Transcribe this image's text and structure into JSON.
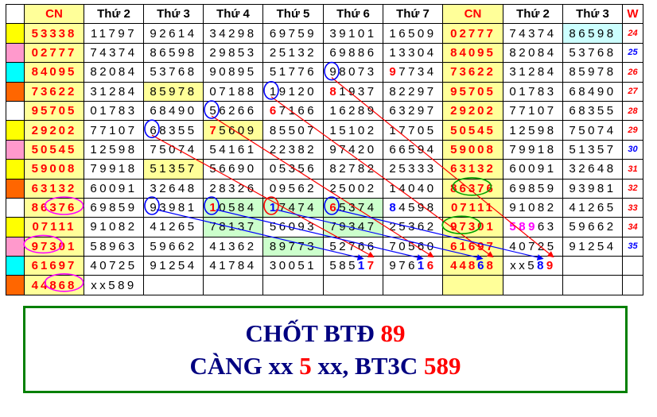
{
  "headers": [
    "CN",
    "Thứ 2",
    "Thứ 3",
    "Thứ 4",
    "Thứ 5",
    "Thứ 6",
    "Thứ 7",
    "CN",
    "Thứ 2",
    "Thứ 3",
    "W"
  ],
  "markers": [
    "#ffff00",
    "#ff99cc",
    "#00ffff",
    "#ff6600",
    "#ffffff",
    "#ffff00",
    "#ff99cc",
    "#ffff00",
    "#ff6600",
    "#ffffff",
    "#ffff00",
    "#ff99cc",
    "#00ffff",
    "#ff6600"
  ],
  "weeks": [
    "24",
    "25",
    "26",
    "27",
    "28",
    "29",
    "30",
    "31",
    "32",
    "33",
    "34",
    "35"
  ],
  "rows": [
    [
      "53338",
      "11797",
      "92614",
      "34298",
      "69759",
      "39101",
      "16509",
      "02777",
      "74374",
      "86598"
    ],
    [
      "02777",
      "74374",
      "86598",
      "29853",
      "25132",
      "69886",
      "13304",
      "84095",
      "82084",
      "53768"
    ],
    [
      "84095",
      "82084",
      "53768",
      "90895",
      "51776",
      "98073",
      "97734",
      "73622",
      "31284",
      "85978"
    ],
    [
      "73622",
      "31284",
      "85978",
      "07188",
      "19120",
      "81937",
      "82297",
      "95705",
      "01783",
      "68490"
    ],
    [
      "95705",
      "01783",
      "68490",
      "56266",
      "67166",
      "16289",
      "63297",
      "29202",
      "77107",
      "68355"
    ],
    [
      "29202",
      "77107",
      "68355",
      "75609",
      "85507",
      "15102",
      "17705",
      "50545",
      "12598",
      "75074"
    ],
    [
      "50545",
      "12598",
      "75074",
      "54161",
      "22382",
      "97420",
      "66594",
      "59008",
      "79918",
      "51357"
    ],
    [
      "59008",
      "79918",
      "51357",
      "56690",
      "05356",
      "82782",
      "25333",
      "63132",
      "60091",
      "32648"
    ],
    [
      "63132",
      "60091",
      "32648",
      "28326",
      "09562",
      "25002",
      "14040",
      "86376",
      "69859",
      "93981"
    ],
    [
      "86376",
      "69859",
      "93981",
      "10584",
      "17474",
      "65374",
      "84598",
      "07111",
      "91082",
      "41265"
    ],
    [
      "07111",
      "91082",
      "41265",
      "78137",
      "56093",
      "79347",
      "25362",
      "97301",
      "58963",
      "59662"
    ],
    [
      "97301",
      "58963",
      "59662",
      "41362",
      "89773",
      "52766",
      "70560",
      "61697",
      "40725",
      "91254"
    ],
    [
      "61697",
      "40725",
      "91254",
      "41784",
      "30051",
      "58517",
      "97616",
      "44868",
      "xx589",
      ""
    ],
    [
      "44868",
      "xx589",
      "",
      "",
      "",
      "",
      "",
      "",
      "",
      ""
    ]
  ],
  "note": {
    "line1_prefix": "CHỐT BTĐ ",
    "line1_value": "89",
    "line2_prefix": "CÀNG xx ",
    "line2_digit": "5",
    "line2_mid": " xx, BT3C ",
    "line2_value": "589"
  },
  "colors": {
    "red": "#ff0000",
    "blue": "#0000ff",
    "magenta": "#ff00ff",
    "green": "#00a000",
    "yellow": "#ffff99",
    "light_green": "#ccffcc",
    "cyan": "#ccffff",
    "navy": "#000080"
  }
}
